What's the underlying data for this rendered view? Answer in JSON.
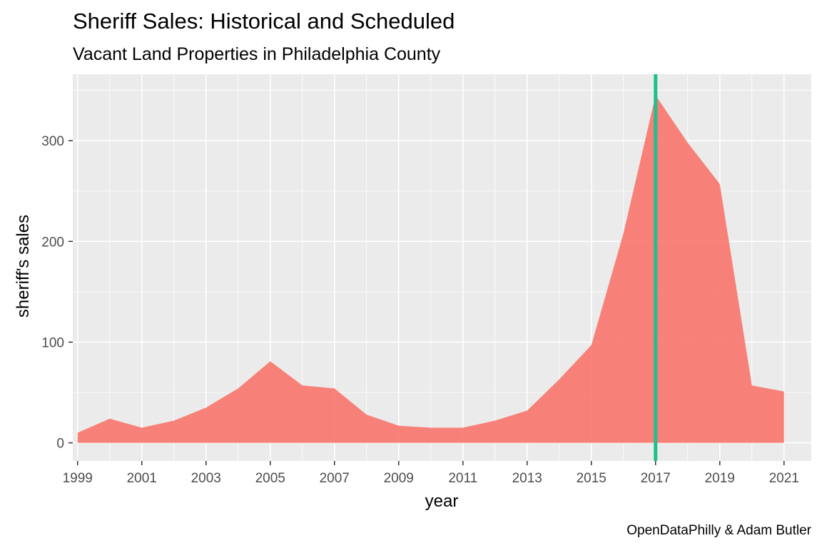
{
  "chart_data": {
    "type": "area",
    "title": "Sheriff Sales: Historical and Scheduled",
    "subtitle": "Vacant Land Properties in Philadelphia County",
    "xlabel": "year",
    "ylabel": "sheriff's sales",
    "caption": "OpenDataPhilly & Adam Butler",
    "x": [
      1999,
      2000,
      2001,
      2002,
      2003,
      2004,
      2005,
      2006,
      2007,
      2008,
      2009,
      2010,
      2011,
      2012,
      2013,
      2014,
      2015,
      2016,
      2017,
      2018,
      2019,
      2020,
      2021
    ],
    "values": [
      10,
      24,
      15,
      22,
      35,
      54,
      81,
      57,
      54,
      28,
      17,
      15,
      15,
      22,
      32,
      63,
      97,
      208,
      345,
      298,
      257,
      57,
      51
    ],
    "x_ticks": [
      "1999",
      "2001",
      "2003",
      "2005",
      "2007",
      "2009",
      "2011",
      "2013",
      "2015",
      "2017",
      "2019",
      "2021"
    ],
    "y_ticks": [
      "0",
      "100",
      "200",
      "300"
    ],
    "xlim": [
      1998.85,
      2021.85
    ],
    "ylim": [
      -18,
      366
    ],
    "reference_line": {
      "x": 2017,
      "color": "#1fbf8f"
    },
    "fill_color": "#f8766d",
    "panel_background": "#ebebeb",
    "grid": true,
    "legend": "none"
  }
}
